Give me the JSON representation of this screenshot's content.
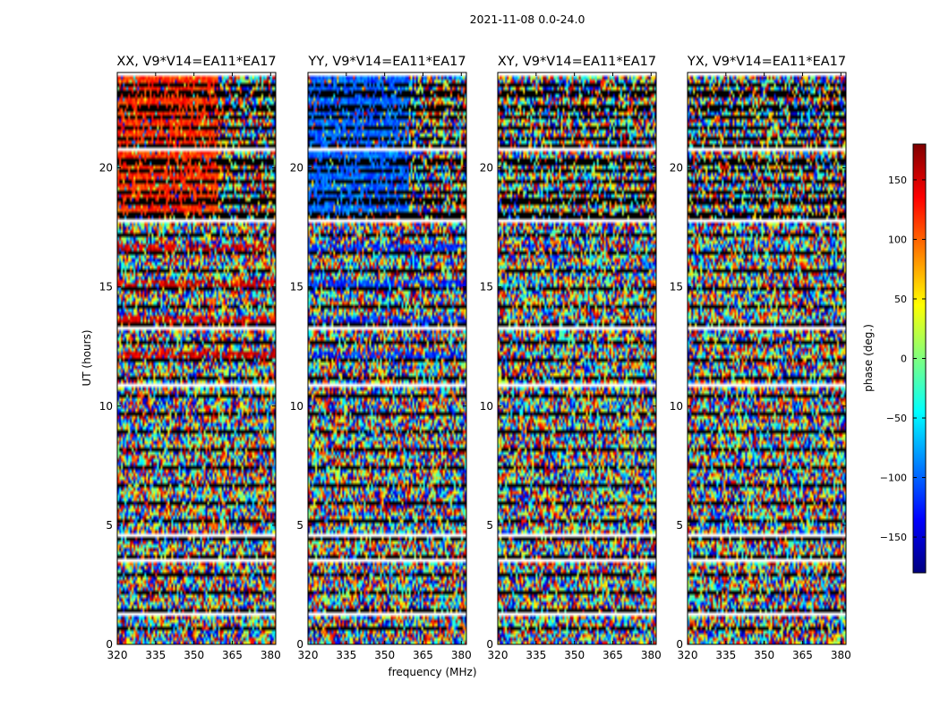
{
  "figure": {
    "suptitle": "2021-11-08 0.0-24.0"
  },
  "chart_data": {
    "type": "heatmap",
    "title": "2021-11-08 0.0-24.0",
    "xlabel": "frequency (MHz)",
    "ylabel": "UT (hours)",
    "xlim": [
      320,
      382
    ],
    "ylim": [
      0,
      24
    ],
    "xticks": [
      "320",
      "335",
      "350",
      "365",
      "380"
    ],
    "yticks": [
      "0",
      "5",
      "10",
      "15",
      "20"
    ],
    "grid": false,
    "colormap": "jet",
    "colorbar": {
      "label": "phase (deg.)",
      "range": [
        -180,
        180
      ],
      "ticks": [
        "150",
        "100",
        "50",
        "0",
        "−50",
        "−100",
        "−150"
      ],
      "tick_values": [
        150,
        100,
        50,
        0,
        -50,
        -100,
        -150
      ],
      "colors": [
        "#00007f",
        "#0000ff",
        "#007fff",
        "#00ffff",
        "#7fff7f",
        "#ffff00",
        "#ff7f00",
        "#ff0000",
        "#7f0000"
      ]
    },
    "panels": [
      {
        "title": "XX, V9*V14=EA11*EA17",
        "polarization": "XX",
        "dominant_phase_early": 150,
        "dominant_phase_late": 120
      },
      {
        "title": "YY, V9*V14=EA11*EA17",
        "polarization": "YY",
        "dominant_phase_early": -120,
        "dominant_phase_late": -100
      },
      {
        "title": "XY, V9*V14=EA11*EA17",
        "polarization": "XY",
        "dominant_phase_early": null,
        "dominant_phase_late": null
      },
      {
        "title": "YX, V9*V14=EA11*EA17",
        "polarization": "YX",
        "dominant_phase_early": null,
        "dominant_phase_late": null
      }
    ],
    "flagged_gaps_ut": [
      1.4,
      3.6,
      4.7,
      11.0,
      13.3,
      17.8,
      20.8,
      24.0
    ]
  }
}
